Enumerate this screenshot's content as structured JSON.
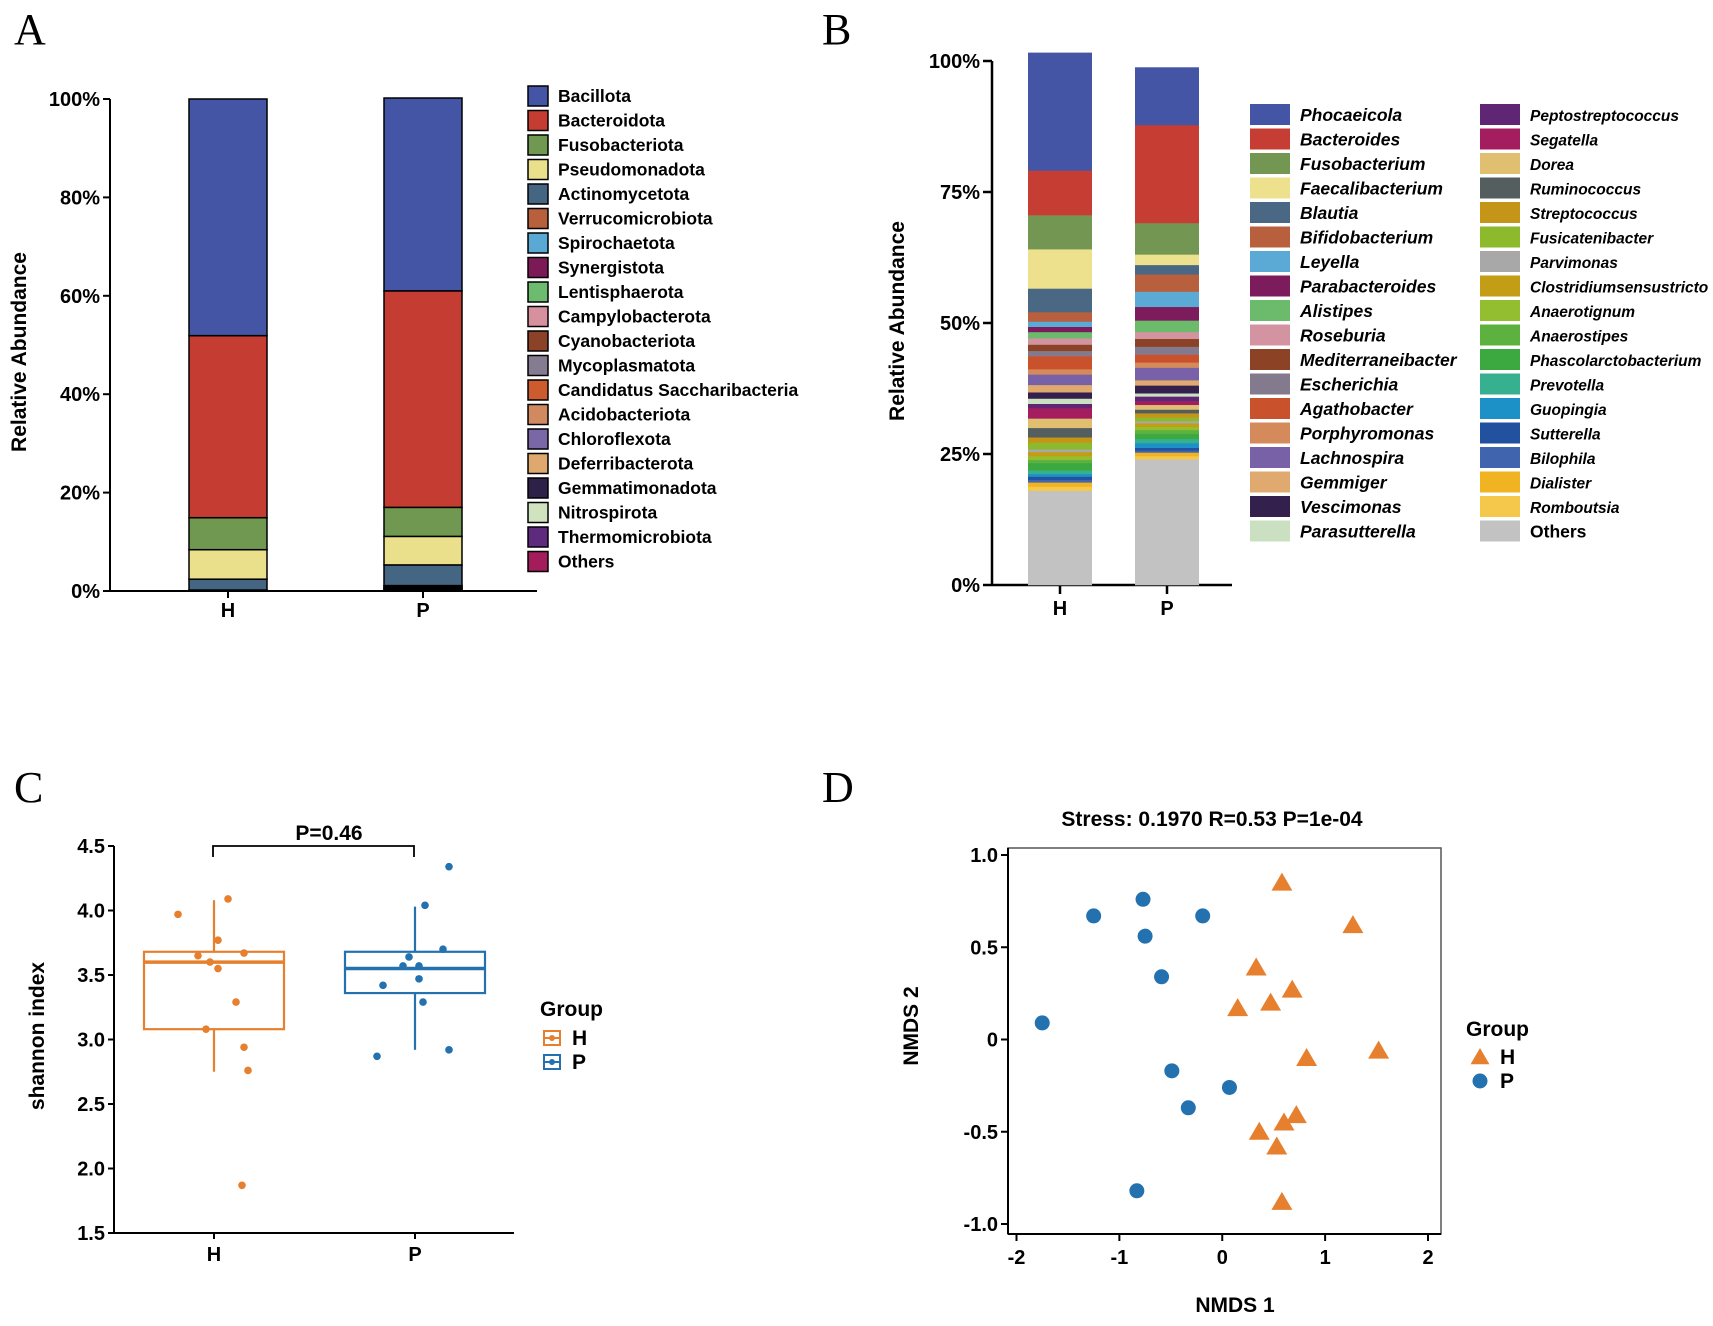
{
  "panels": {
    "A": {
      "label": "A"
    },
    "B": {
      "label": "B"
    },
    "C": {
      "label": "C"
    },
    "D": {
      "label": "D"
    }
  },
  "colors": {
    "H": "#E6802F",
    "P": "#2471B0"
  },
  "chart_data": [
    {
      "id": "A",
      "type": "bar",
      "stacked": true,
      "ylabel": "Relative Abundance",
      "categories": [
        "H",
        "P"
      ],
      "yticks": [
        "0%",
        "20%",
        "40%",
        "60%",
        "80%",
        "100%"
      ],
      "ylim": [
        0,
        100
      ],
      "series": [
        {
          "name": "Others",
          "color": "#A31C5C",
          "values": [
            0.1,
            0.1
          ]
        },
        {
          "name": "Thermomicrobiota",
          "color": "#5E2A7E",
          "values": [
            0,
            0
          ]
        },
        {
          "name": "Nitrospirota",
          "color": "#CFE3BF",
          "values": [
            0,
            0
          ]
        },
        {
          "name": "Gemmatimonadota",
          "color": "#2E2148",
          "values": [
            0,
            0
          ]
        },
        {
          "name": "Deferribacterota",
          "color": "#DFA86E",
          "values": [
            0,
            0
          ]
        },
        {
          "name": "Chloroflexota",
          "color": "#7A68A6",
          "values": [
            0,
            0
          ]
        },
        {
          "name": "Acidobacteriota",
          "color": "#D18A60",
          "values": [
            0,
            0.2
          ]
        },
        {
          "name": "Candidatus Saccharibacteria",
          "color": "#CC5B2E",
          "values": [
            0,
            0.2
          ]
        },
        {
          "name": "Mycoplasmatota",
          "color": "#857C92",
          "values": [
            0,
            0.1
          ]
        },
        {
          "name": "Cyanobacteriota",
          "color": "#8B4226",
          "values": [
            0,
            0.2
          ]
        },
        {
          "name": "Campylobacterota",
          "color": "#D7919E",
          "values": [
            0.1,
            0.2
          ]
        },
        {
          "name": "Lentisphaerota",
          "color": "#6CBB6F",
          "values": [
            0,
            0
          ]
        },
        {
          "name": "Synergistota",
          "color": "#7B1A57",
          "values": [
            0,
            0
          ]
        },
        {
          "name": "Spirochaetota",
          "color": "#5AA8D4",
          "values": [
            0,
            0
          ]
        },
        {
          "name": "Verrucomicrobiota",
          "color": "#B85F3C",
          "values": [
            0,
            0.1
          ]
        },
        {
          "name": "Actinomycetota",
          "color": "#456683",
          "values": [
            2.2,
            4.2
          ]
        },
        {
          "name": "Pseudomonadota",
          "color": "#EAE08C",
          "values": [
            6,
            5.8
          ]
        },
        {
          "name": "Fusobacteriota",
          "color": "#719850",
          "values": [
            6.5,
            5.9
          ]
        },
        {
          "name": "Bacteroidota",
          "color": "#C53D32",
          "values": [
            37,
            44
          ]
        },
        {
          "name": "Bacillota",
          "color": "#4455A6",
          "values": [
            48.1,
            39.2
          ]
        }
      ]
    },
    {
      "id": "B",
      "type": "bar",
      "stacked": true,
      "ylabel": "Relative Abundance",
      "categories": [
        "H",
        "P"
      ],
      "yticks": [
        "0%",
        "25%",
        "50%",
        "75%",
        "100%"
      ],
      "ylim": [
        0,
        100
      ],
      "series": [
        {
          "name": "Others",
          "color": "#C2C2C2",
          "values": [
            18,
            24
          ]
        },
        {
          "name": "Romboutsia",
          "color": "#F5C84B",
          "values": [
            0.8,
            0.6
          ]
        },
        {
          "name": "Dialister",
          "color": "#F0B322",
          "values": [
            0.8,
            0.7
          ]
        },
        {
          "name": "Bilophila",
          "color": "#4164AE",
          "values": [
            0.5,
            0.4
          ]
        },
        {
          "name": "Sutterella",
          "color": "#21519F",
          "values": [
            0.6,
            0.5
          ]
        },
        {
          "name": "Guopingia",
          "color": "#1C91C7",
          "values": [
            0.5,
            0.9
          ]
        },
        {
          "name": "Prevotella",
          "color": "#37B08F",
          "values": [
            0.7,
            0.8
          ]
        },
        {
          "name": "Phascolarctobacterium",
          "color": "#3BA840",
          "values": [
            1.4,
            1.0
          ]
        },
        {
          "name": "Anaerostipes",
          "color": "#5DB23F",
          "values": [
            0.6,
            0.7
          ]
        },
        {
          "name": "Anaerotignum",
          "color": "#93BE2F",
          "values": [
            0.7,
            0.6
          ]
        },
        {
          "name": "Clostridiumsensustricto",
          "color": "#C29D15",
          "values": [
            0.8,
            0.7
          ]
        },
        {
          "name": "Parvimonas",
          "color": "#A8A8A8",
          "values": [
            0.5,
            0.4
          ]
        },
        {
          "name": "Fusicatenibacter",
          "color": "#8DBA2C",
          "values": [
            1.3,
            0.7
          ]
        },
        {
          "name": "Streptococcus",
          "color": "#C49516",
          "values": [
            1.0,
            0.8
          ]
        },
        {
          "name": "Ruminococcus",
          "color": "#545E5E",
          "values": [
            1.8,
            0.7
          ]
        },
        {
          "name": "Dorea",
          "color": "#E0C070",
          "values": [
            1.8,
            0.9
          ]
        },
        {
          "name": "Segatella",
          "color": "#A41D5E",
          "values": [
            2.0,
            0.7
          ]
        },
        {
          "name": "Peptostreptococcus",
          "color": "#5F2773",
          "values": [
            0.8,
            0.9
          ]
        },
        {
          "name": "Parasutterella",
          "color": "#CAE0C0",
          "values": [
            1.0,
            0.6
          ]
        },
        {
          "name": "Vescimonas",
          "color": "#34204D",
          "values": [
            1.2,
            1.5
          ]
        },
        {
          "name": "Gemmiger",
          "color": "#DFA970",
          "values": [
            1.4,
            1.0
          ]
        },
        {
          "name": "Lachnospira",
          "color": "#7861A6",
          "values": [
            2.0,
            2.4
          ]
        },
        {
          "name": "Porphyromonas",
          "color": "#D58A5C",
          "values": [
            1.0,
            1.0
          ]
        },
        {
          "name": "Agathobacter",
          "color": "#C9522C",
          "values": [
            2.5,
            1.5
          ]
        },
        {
          "name": "Escherichia",
          "color": "#847A8E",
          "values": [
            1.0,
            1.5
          ]
        },
        {
          "name": "Mediterraneibacter",
          "color": "#8B4225",
          "values": [
            1.2,
            1.5
          ]
        },
        {
          "name": "Roseburia",
          "color": "#D493A0",
          "values": [
            1.2,
            1.3
          ]
        },
        {
          "name": "Alistipes",
          "color": "#6CBB6D",
          "values": [
            1.2,
            2.2
          ]
        },
        {
          "name": "Parabacteroides",
          "color": "#7D1C5C",
          "values": [
            1.0,
            2.6
          ]
        },
        {
          "name": "Leyella",
          "color": "#5BAAD6",
          "values": [
            1.0,
            2.9
          ]
        },
        {
          "name": "Bifidobacterium",
          "color": "#B85F3E",
          "values": [
            1.8,
            3.3
          ]
        },
        {
          "name": "Blautia",
          "color": "#4A6783",
          "values": [
            4.5,
            1.8
          ]
        },
        {
          "name": "Faecalibacterium",
          "color": "#EDE18D",
          "values": [
            7.5,
            2.0
          ]
        },
        {
          "name": "Fusobacterium",
          "color": "#739652",
          "values": [
            6.5,
            6.0
          ]
        },
        {
          "name": "Bacteroides",
          "color": "#C53D33",
          "values": [
            8.5,
            18.7
          ]
        },
        {
          "name": "Phocaeicola",
          "color": "#4455A6",
          "values": [
            22.5,
            11.0
          ]
        }
      ]
    },
    {
      "id": "C",
      "type": "box",
      "ylabel": "shannon index",
      "categories": [
        "H",
        "P"
      ],
      "ylim": [
        1.5,
        4.5
      ],
      "yticks": [
        "1.5",
        "2.0",
        "2.5",
        "3.0",
        "3.5",
        "4.0",
        "4.5"
      ],
      "annotation": "P=0.46",
      "legend_title": "Group",
      "legend": [
        "H",
        "P"
      ],
      "boxes": [
        {
          "group": "H",
          "min": 2.75,
          "q1": 3.08,
          "median": 3.6,
          "q3": 3.68,
          "max": 4.08
        },
        {
          "group": "P",
          "min": 2.92,
          "q1": 3.36,
          "median": 3.55,
          "q3": 3.68,
          "max": 4.03
        }
      ],
      "points": {
        "H": [
          3.97,
          4.09,
          3.77,
          3.65,
          3.67,
          3.6,
          3.55,
          3.29,
          3.08,
          2.94,
          2.76,
          1.87
        ],
        "P": [
          4.34,
          4.04,
          3.7,
          3.64,
          3.57,
          3.57,
          3.47,
          3.42,
          3.29,
          2.92,
          2.87
        ]
      }
    },
    {
      "id": "D",
      "type": "scatter",
      "title": "Stress: 0.1970  R=0.53 P=1e-04",
      "xlabel": "NMDS 1",
      "ylabel": "NMDS 2",
      "xlim": [
        -2,
        2
      ],
      "ylim": [
        -1,
        1
      ],
      "xticks": [
        "-2",
        "-1",
        "0",
        "1",
        "2"
      ],
      "yticks": [
        "-1.0",
        "-0.5",
        "0",
        "0.5",
        "1.0"
      ],
      "legend_title": "Group",
      "legend": [
        "H",
        "P"
      ],
      "series": [
        {
          "name": "H",
          "marker": "triangle",
          "x": [
            0.58,
            1.27,
            0.33,
            0.68,
            0.47,
            0.15,
            0.82,
            1.52,
            0.72,
            0.6,
            0.36,
            0.53,
            0.58
          ],
          "y": [
            0.85,
            0.62,
            0.39,
            0.27,
            0.2,
            0.17,
            -0.1,
            -0.06,
            -0.41,
            -0.45,
            -0.5,
            -0.58,
            -0.88
          ]
        },
        {
          "name": "P",
          "marker": "circle",
          "x": [
            -1.25,
            -0.77,
            -0.19,
            -0.75,
            -0.59,
            -1.75,
            -0.49,
            0.07,
            -0.33,
            -0.83
          ],
          "y": [
            0.67,
            0.76,
            0.67,
            0.56,
            0.34,
            0.09,
            -0.17,
            -0.26,
            -0.37,
            -0.82
          ]
        }
      ]
    }
  ]
}
